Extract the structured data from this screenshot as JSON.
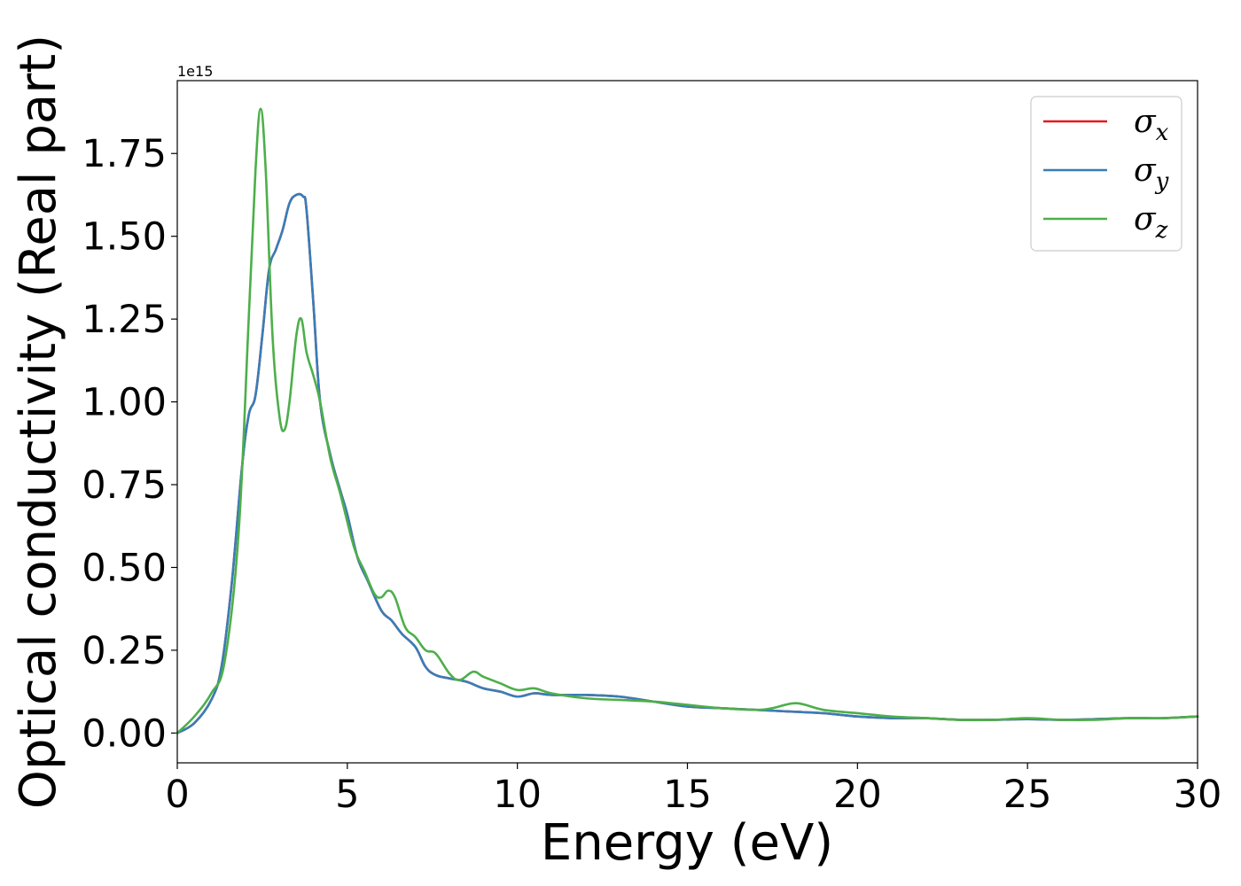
{
  "chart_data": {
    "type": "line",
    "xlabel": "Energy (eV)",
    "ylabel": "Optical conductivity (Real part)",
    "y_offset_label": "1e15",
    "xlim": [
      0,
      30
    ],
    "ylim": [
      -0.09,
      1.97
    ],
    "xticks": [
      0,
      5,
      10,
      15,
      20,
      25,
      30
    ],
    "xtick_labels": [
      "0",
      "5",
      "10",
      "15",
      "20",
      "25",
      "30"
    ],
    "yticks": [
      0.0,
      0.25,
      0.5,
      0.75,
      1.0,
      1.25,
      1.5,
      1.75
    ],
    "ytick_labels": [
      "0.00",
      "0.25",
      "0.50",
      "0.75",
      "1.00",
      "1.25",
      "1.50",
      "1.75"
    ],
    "grid": false,
    "legend_position": "top-right",
    "series": [
      {
        "name": "σx",
        "symbol": "σ",
        "sub": "x",
        "color": "#e41a1c",
        "x": [
          0,
          0.5,
          1.0,
          1.3,
          1.6,
          1.9,
          2.1,
          2.3,
          2.5,
          2.7,
          2.9,
          3.1,
          3.3,
          3.5,
          3.7,
          3.8,
          4.0,
          4.2,
          4.5,
          4.8,
          5.0,
          5.3,
          5.6,
          6.0,
          6.3,
          6.6,
          7.0,
          7.3,
          7.6,
          8.0,
          8.5,
          9.0,
          9.5,
          10.0,
          10.5,
          11.0,
          12.0,
          13.0,
          14.0,
          15.0,
          16.0,
          17.0,
          18.0,
          19.0,
          20.0,
          21.0,
          22.0,
          23.0,
          24.0,
          25.0,
          26.0,
          27.0,
          28.0,
          29.0,
          30.0
        ],
        "y": [
          0.0,
          0.03,
          0.1,
          0.2,
          0.45,
          0.8,
          0.96,
          1.02,
          1.2,
          1.4,
          1.46,
          1.52,
          1.6,
          1.625,
          1.62,
          1.58,
          1.3,
          1.0,
          0.84,
          0.73,
          0.66,
          0.53,
          0.46,
          0.37,
          0.34,
          0.3,
          0.26,
          0.2,
          0.175,
          0.165,
          0.155,
          0.135,
          0.125,
          0.11,
          0.12,
          0.115,
          0.115,
          0.11,
          0.095,
          0.08,
          0.075,
          0.07,
          0.065,
          0.06,
          0.05,
          0.045,
          0.045,
          0.04,
          0.04,
          0.042,
          0.04,
          0.042,
          0.045,
          0.045,
          0.05
        ]
      },
      {
        "name": "σy",
        "symbol": "σ",
        "sub": "y",
        "color": "#377eb8",
        "x": [
          0,
          0.5,
          1.0,
          1.3,
          1.6,
          1.9,
          2.1,
          2.3,
          2.5,
          2.7,
          2.9,
          3.1,
          3.3,
          3.5,
          3.7,
          3.8,
          4.0,
          4.2,
          4.5,
          4.8,
          5.0,
          5.3,
          5.6,
          6.0,
          6.3,
          6.6,
          7.0,
          7.3,
          7.6,
          8.0,
          8.5,
          9.0,
          9.5,
          10.0,
          10.5,
          11.0,
          12.0,
          13.0,
          14.0,
          15.0,
          16.0,
          17.0,
          18.0,
          19.0,
          20.0,
          21.0,
          22.0,
          23.0,
          24.0,
          25.0,
          26.0,
          27.0,
          28.0,
          29.0,
          30.0
        ],
        "y": [
          0.0,
          0.03,
          0.1,
          0.2,
          0.45,
          0.8,
          0.96,
          1.02,
          1.2,
          1.4,
          1.46,
          1.52,
          1.6,
          1.625,
          1.62,
          1.58,
          1.3,
          1.0,
          0.84,
          0.73,
          0.66,
          0.53,
          0.46,
          0.37,
          0.34,
          0.3,
          0.26,
          0.2,
          0.175,
          0.165,
          0.155,
          0.135,
          0.125,
          0.11,
          0.12,
          0.115,
          0.115,
          0.11,
          0.095,
          0.08,
          0.075,
          0.07,
          0.065,
          0.06,
          0.05,
          0.045,
          0.045,
          0.04,
          0.04,
          0.042,
          0.04,
          0.042,
          0.045,
          0.045,
          0.05
        ]
      },
      {
        "name": "σz",
        "symbol": "σ",
        "sub": "z",
        "color": "#4daf4a",
        "x": [
          0,
          0.5,
          1.0,
          1.4,
          1.8,
          2.1,
          2.3,
          2.45,
          2.6,
          2.8,
          3.0,
          3.15,
          3.3,
          3.5,
          3.65,
          3.8,
          4.0,
          4.2,
          4.5,
          4.8,
          5.2,
          5.5,
          5.8,
          6.0,
          6.2,
          6.4,
          6.7,
          7.0,
          7.3,
          7.6,
          8.0,
          8.3,
          8.7,
          9.0,
          9.5,
          10.0,
          10.5,
          11.0,
          12.0,
          13.0,
          14.0,
          15.0,
          16.0,
          17.0,
          17.5,
          18.2,
          19.0,
          20.0,
          21.0,
          22.0,
          23.0,
          24.0,
          25.0,
          26.0,
          27.0,
          28.0,
          29.0,
          30.0
        ],
        "y": [
          0.0,
          0.05,
          0.12,
          0.22,
          0.6,
          1.25,
          1.7,
          1.885,
          1.7,
          1.2,
          0.96,
          0.915,
          1.0,
          1.2,
          1.25,
          1.15,
          1.08,
          1.0,
          0.83,
          0.72,
          0.56,
          0.49,
          0.42,
          0.41,
          0.43,
          0.41,
          0.32,
          0.29,
          0.25,
          0.24,
          0.18,
          0.16,
          0.185,
          0.17,
          0.15,
          0.13,
          0.135,
          0.12,
          0.105,
          0.1,
          0.095,
          0.085,
          0.075,
          0.07,
          0.075,
          0.09,
          0.07,
          0.06,
          0.05,
          0.045,
          0.04,
          0.04,
          0.045,
          0.04,
          0.04,
          0.045,
          0.045,
          0.05
        ]
      }
    ]
  }
}
